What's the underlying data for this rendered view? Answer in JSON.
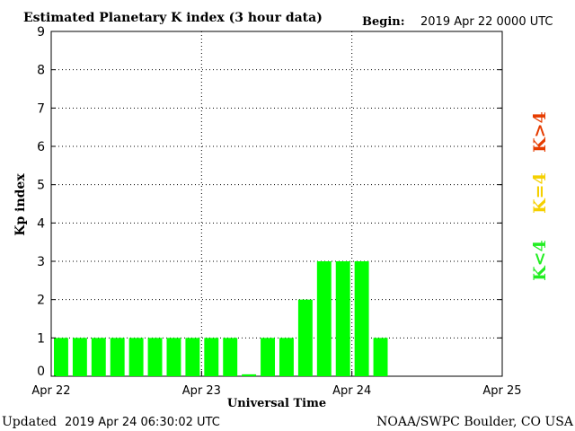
{
  "header": {
    "title": "Estimated Planetary K index (3 hour data)",
    "begin_label": "Begin:",
    "begin_value": "2019 Apr 22 0000 UTC"
  },
  "footer": {
    "updated_label": "Updated",
    "updated_value": "2019 Apr 24 06:30:02 UTC",
    "source": "NOAA/SWPC Boulder, CO USA"
  },
  "chart_data": {
    "type": "bar",
    "title": "Estimated Planetary K index (3 hour data)",
    "xlabel": "Universal Time",
    "ylabel": "Kp index",
    "ylim": [
      0,
      9
    ],
    "yticks": [
      "0",
      "1",
      "2",
      "3",
      "4",
      "5",
      "6",
      "7",
      "8",
      "9"
    ],
    "xticks": [
      "Apr 22",
      "Apr 23",
      "Apr 24",
      "Apr 25"
    ],
    "grid": true,
    "bar_color": "#00ff00",
    "categories": [
      "Apr 22 00",
      "Apr 22 03",
      "Apr 22 06",
      "Apr 22 09",
      "Apr 22 12",
      "Apr 22 15",
      "Apr 22 18",
      "Apr 22 21",
      "Apr 23 00",
      "Apr 23 03",
      "Apr 23 06",
      "Apr 23 09",
      "Apr 23 12",
      "Apr 23 15",
      "Apr 23 18",
      "Apr 23 21",
      "Apr 24 00",
      "Apr 24 03"
    ],
    "values": [
      1,
      1,
      1,
      1,
      1,
      1,
      1,
      1,
      1,
      1,
      0.05,
      1,
      1,
      2,
      3,
      3,
      3,
      1
    ]
  },
  "legend": [
    {
      "label": "K>4",
      "color": "#e63c00"
    },
    {
      "label": "K=4",
      "color": "#f5d000"
    },
    {
      "label": "K<4",
      "color": "#22ee22"
    }
  ]
}
